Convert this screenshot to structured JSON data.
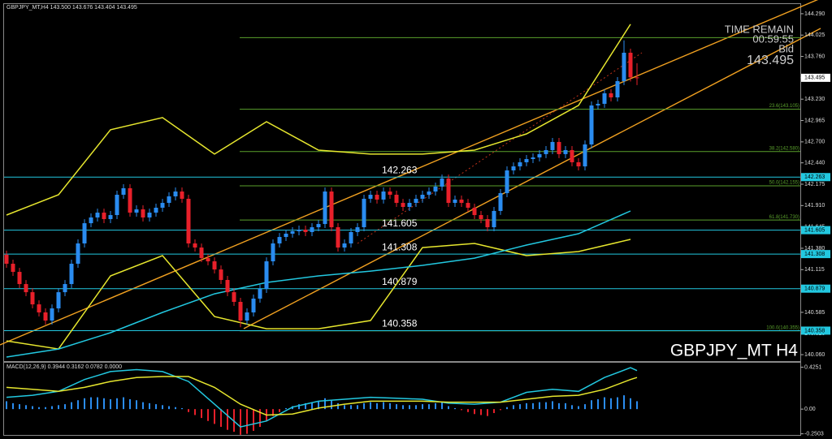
{
  "chart_data": [
    {
      "type": "candlestick",
      "title": "GBPJPY_MT,H4 143.500 143.676 143.404 143.495",
      "symbol_label": "GBPJPY_MT H4",
      "time_remain_label": "TIME REMAIN",
      "time_remain": "00:59:55",
      "bid_label": "Bid",
      "bid": 143.495,
      "bull_color": "#2a8cf0",
      "bear_color": "#e8202a",
      "open": [
        141.3,
        141.188,
        141.087,
        140.936,
        140.835,
        140.684,
        140.584,
        140.483,
        140.634,
        140.835,
        140.936,
        141.188,
        141.44,
        141.691,
        141.762,
        141.822,
        141.742,
        141.792,
        142.044,
        142.125,
        141.822,
        141.863,
        141.762,
        141.822,
        141.883,
        141.943,
        142.024,
        142.084,
        141.994,
        141.44,
        141.389,
        141.258,
        141.218,
        141.117,
        140.987,
        140.835,
        140.715,
        140.483,
        140.584,
        140.755,
        140.876,
        141.218,
        141.44,
        141.52,
        141.561,
        141.591,
        141.611,
        141.581,
        141.641,
        141.681,
        142.084,
        141.641,
        141.389,
        141.44,
        141.581,
        141.641,
        141.994,
        142.044,
        141.984,
        142.084,
        142.044,
        141.943,
        141.893,
        141.943,
        141.994,
        142.044,
        142.084,
        142.145,
        142.245,
        141.943,
        141.984,
        141.943,
        141.883,
        141.792,
        141.742,
        141.641,
        141.843,
        142.064,
        142.346,
        142.396,
        142.447,
        142.487,
        142.507,
        142.548,
        142.598,
        142.699,
        142.548,
        142.598,
        142.447,
        142.396,
        142.668,
        143.152,
        143.172,
        143.303,
        143.252,
        143.454,
        143.806,
        143.5
      ],
      "high": [
        141.35,
        141.238,
        141.137,
        140.986,
        140.885,
        140.734,
        140.634,
        140.684,
        140.885,
        140.986,
        141.238,
        141.49,
        141.741,
        141.812,
        141.872,
        141.872,
        141.842,
        142.094,
        142.175,
        142.175,
        141.913,
        141.913,
        141.872,
        141.933,
        141.993,
        142.074,
        142.134,
        142.134,
        142.044,
        141.49,
        141.439,
        141.308,
        141.268,
        141.167,
        141.037,
        140.885,
        140.765,
        140.634,
        140.805,
        140.926,
        141.268,
        141.49,
        141.57,
        141.611,
        141.641,
        141.661,
        141.661,
        141.691,
        141.731,
        142.134,
        142.134,
        141.691,
        141.49,
        141.631,
        141.691,
        142.044,
        142.094,
        142.094,
        142.134,
        142.134,
        142.094,
        141.993,
        141.993,
        142.044,
        142.094,
        142.134,
        142.195,
        142.295,
        142.295,
        142.034,
        142.034,
        141.993,
        141.933,
        141.842,
        141.792,
        141.893,
        142.114,
        142.396,
        142.446,
        142.497,
        142.537,
        142.557,
        142.598,
        142.648,
        142.749,
        142.749,
        142.648,
        142.648,
        142.497,
        142.718,
        143.202,
        143.222,
        143.353,
        143.353,
        143.504,
        143.96,
        143.856,
        143.676
      ],
      "low": [
        141.138,
        141.037,
        140.886,
        140.785,
        140.634,
        140.534,
        140.433,
        140.433,
        140.584,
        140.785,
        140.886,
        141.138,
        141.39,
        141.641,
        141.712,
        141.692,
        141.692,
        141.742,
        141.994,
        141.772,
        141.772,
        141.712,
        141.712,
        141.772,
        141.833,
        141.893,
        141.974,
        141.944,
        141.39,
        141.339,
        141.208,
        141.168,
        141.067,
        140.937,
        140.785,
        140.665,
        140.4,
        140.433,
        140.534,
        140.705,
        140.826,
        141.168,
        141.39,
        141.47,
        141.511,
        141.541,
        141.531,
        141.531,
        141.591,
        141.631,
        141.591,
        141.339,
        141.339,
        141.39,
        141.531,
        141.591,
        141.944,
        141.934,
        141.934,
        141.994,
        141.893,
        141.843,
        141.843,
        141.893,
        141.944,
        141.994,
        142.034,
        142.095,
        141.893,
        141.893,
        141.893,
        141.833,
        141.742,
        141.692,
        141.591,
        141.591,
        141.793,
        142.014,
        142.296,
        142.346,
        142.397,
        142.437,
        142.457,
        142.498,
        142.548,
        142.498,
        142.498,
        142.397,
        142.346,
        142.346,
        142.618,
        143.102,
        143.122,
        143.202,
        143.202,
        143.404,
        143.45,
        143.404
      ],
      "close": [
        141.188,
        141.087,
        140.936,
        140.835,
        140.684,
        140.584,
        140.483,
        140.634,
        140.835,
        140.936,
        141.188,
        141.44,
        141.691,
        141.762,
        141.822,
        141.742,
        141.792,
        142.044,
        142.125,
        141.822,
        141.863,
        141.762,
        141.822,
        141.883,
        141.943,
        142.024,
        142.084,
        141.994,
        141.44,
        141.389,
        141.258,
        141.218,
        141.117,
        140.987,
        140.835,
        140.715,
        140.483,
        140.584,
        140.755,
        140.876,
        141.218,
        141.44,
        141.52,
        141.561,
        141.591,
        141.611,
        141.581,
        141.641,
        141.681,
        142.084,
        141.641,
        141.389,
        141.44,
        141.581,
        141.641,
        141.994,
        142.044,
        141.984,
        142.084,
        142.044,
        141.943,
        141.893,
        141.943,
        141.994,
        142.044,
        142.084,
        142.145,
        142.245,
        141.943,
        141.984,
        141.943,
        141.883,
        141.792,
        141.742,
        141.641,
        141.843,
        142.064,
        142.346,
        142.396,
        142.447,
        142.487,
        142.507,
        142.548,
        142.598,
        142.699,
        142.548,
        142.598,
        142.447,
        142.396,
        142.668,
        143.152,
        143.172,
        143.303,
        143.252,
        143.454,
        143.806,
        143.5,
        143.495
      ],
      "overlays": [
        {
          "color": "#e6e62e",
          "x": [
            0,
            8,
            16,
            24,
            32,
            40,
            48,
            56,
            64,
            72,
            80,
            88,
            96
          ],
          "values": [
            141.792,
            142.044,
            142.85,
            143.001,
            142.548,
            142.95,
            142.598,
            142.548,
            142.548,
            142.598,
            142.799,
            143.152,
            144.159
          ]
        },
        {
          "color": "#e6e62e",
          "x": [
            0,
            8,
            16,
            24,
            32,
            40,
            48,
            56,
            64,
            72,
            80,
            88,
            96
          ],
          "values": [
            140.231,
            140.13,
            141.037,
            141.289,
            140.533,
            140.382,
            140.382,
            140.483,
            141.389,
            141.44,
            141.289,
            141.339,
            141.49
          ]
        },
        {
          "color": "#22c8e0",
          "x": [
            0,
            8,
            16,
            24,
            32,
            40,
            48,
            56,
            64,
            72,
            80,
            88,
            96
          ],
          "values": [
            140.03,
            140.13,
            140.332,
            140.584,
            140.815,
            140.956,
            141.037,
            141.097,
            141.168,
            141.258,
            141.42,
            141.561,
            141.843
          ]
        }
      ],
      "levels": [
        142.263,
        141.605,
        141.308,
        140.879,
        140.358
      ],
      "level_color": "#22c8e0",
      "fib_levels": [
        {
          "value": 143.993
        },
        {
          "value": 143.105,
          "label": "23.6(143.105)"
        },
        {
          "value": 142.58,
          "label": "38.2(142.580)"
        },
        {
          "value": 142.155,
          "label": "50.0(142.155)"
        },
        {
          "value": 141.73,
          "label": "61.8(141.730)"
        },
        {
          "value": 140.355,
          "label": "100.0(140.355)"
        }
      ],
      "fib_color": "#5aa02c",
      "ylim": [
        139.98,
        144.41
      ],
      "yticks": [
        {
          "value": 144.29,
          "label": "144.290"
        },
        144.025,
        {
          "value": 143.76,
          "label": "143.760"
        },
        143.495,
        {
          "value": 143.23,
          "label": "143.230"
        },
        142.965,
        {
          "value": 142.7,
          "label": "142.700"
        },
        {
          "value": 142.44,
          "label": "142.440"
        },
        142.175,
        {
          "value": 141.91,
          "label": "141.910"
        },
        141.645,
        {
          "value": 141.38,
          "label": "141.380"
        },
        141.115,
        {
          "value": 140.85,
          "label": "140.850"
        },
        140.585,
        {
          "value": 140.32,
          "label": "140.320"
        },
        {
          "value": 140.06,
          "label": "140.060"
        }
      ]
    },
    {
      "type": "macd",
      "title": "MACD(12,26,9) 0.3944 0.3162 0.0782 0.0000",
      "pos_color": "#2a8cf0",
      "neg_color": "#e8202a",
      "values": [
        0.08,
        0.06,
        0.05,
        0.04,
        0.03,
        0.02,
        0.02,
        0.03,
        0.04,
        0.05,
        0.07,
        0.09,
        0.11,
        0.12,
        0.12,
        0.11,
        0.1,
        0.11,
        0.12,
        0.1,
        0.09,
        0.07,
        0.06,
        0.05,
        0.04,
        0.03,
        0.02,
        0.01,
        -0.03,
        -0.06,
        -0.09,
        -0.12,
        -0.15,
        -0.18,
        -0.21,
        -0.23,
        -0.26,
        -0.25,
        -0.22,
        -0.18,
        -0.12,
        -0.07,
        -0.03,
        0.01,
        0.03,
        0.05,
        0.06,
        0.07,
        0.08,
        0.11,
        0.09,
        0.06,
        0.04,
        0.04,
        0.04,
        0.06,
        0.07,
        0.06,
        0.07,
        0.06,
        0.05,
        0.04,
        0.04,
        0.04,
        0.05,
        0.05,
        0.06,
        0.07,
        0.03,
        0.01,
        -0.01,
        -0.03,
        -0.05,
        -0.06,
        -0.07,
        -0.04,
        -0.01,
        0.02,
        0.04,
        0.05,
        0.06,
        0.06,
        0.07,
        0.07,
        0.08,
        0.06,
        0.06,
        0.04,
        0.03,
        0.05,
        0.09,
        0.1,
        0.12,
        0.11,
        0.12,
        0.14,
        0.11,
        0.08
      ],
      "series": [
        {
          "color": "#22c8e0",
          "x": [
            0,
            4,
            8,
            12,
            16,
            20,
            24,
            28,
            32,
            36,
            40,
            44,
            48,
            52,
            56,
            60,
            64,
            68,
            72,
            76,
            80,
            84,
            88,
            92,
            96,
            97
          ],
          "values": [
            0.12,
            0.14,
            0.18,
            0.3,
            0.38,
            0.4,
            0.38,
            0.28,
            0.05,
            -0.18,
            -0.12,
            0.02,
            0.08,
            0.1,
            0.12,
            0.11,
            0.1,
            0.06,
            0.05,
            0.07,
            0.17,
            0.2,
            0.18,
            0.32,
            0.42,
            0.39
          ]
        },
        {
          "color": "#e6e62e",
          "x": [
            0,
            4,
            8,
            12,
            16,
            20,
            24,
            28,
            32,
            36,
            40,
            44,
            48,
            52,
            56,
            60,
            64,
            68,
            72,
            76,
            80,
            84,
            88,
            92,
            96,
            97
          ],
          "values": [
            0.22,
            0.2,
            0.18,
            0.22,
            0.28,
            0.32,
            0.33,
            0.33,
            0.22,
            0.05,
            -0.06,
            -0.05,
            0.01,
            0.05,
            0.08,
            0.08,
            0.08,
            0.07,
            0.07,
            0.07,
            0.1,
            0.13,
            0.14,
            0.2,
            0.3,
            0.32
          ]
        }
      ],
      "ylim": [
        -0.27,
        0.47
      ],
      "yticks": [
        0.4251,
        {
          "value": 0,
          "label": "0.00"
        },
        -0.2503
      ]
    }
  ]
}
